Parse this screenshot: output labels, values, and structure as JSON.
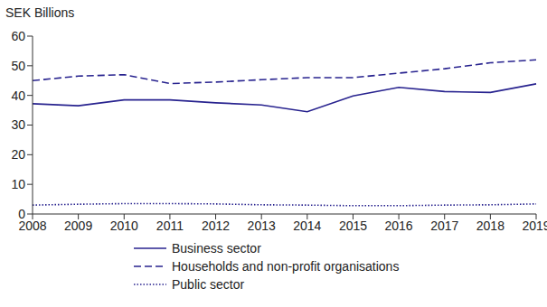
{
  "chart_data": {
    "type": "line",
    "ylabel": "SEK Billions",
    "categories": [
      "2008",
      "2009",
      "2010",
      "2011",
      "2012",
      "2013",
      "2014",
      "2015",
      "2016",
      "2017",
      "2018",
      "2019"
    ],
    "ylim": [
      0,
      60
    ],
    "yticks": [
      0,
      10,
      20,
      30,
      40,
      50,
      60
    ],
    "grid": false,
    "legend": "bottom",
    "series": [
      {
        "name": "Business sector",
        "color": "#28238f",
        "line_style": "solid",
        "values": [
          37.2,
          36.5,
          38.5,
          38.5,
          37.5,
          36.8,
          34.5,
          39.8,
          42.7,
          41.3,
          41.0,
          43.9
        ]
      },
      {
        "name": "Households and non-profit organisations",
        "color": "#28238f",
        "line_style": "dashed",
        "values": [
          45.0,
          46.5,
          47.0,
          44.0,
          44.5,
          45.3,
          46.0,
          46.0,
          47.5,
          49.0,
          51.0,
          52.0
        ]
      },
      {
        "name": "Public sector",
        "color": "#28238f",
        "line_style": "dotted",
        "values": [
          3.0,
          3.3,
          3.5,
          3.5,
          3.4,
          3.1,
          3.0,
          2.8,
          2.8,
          3.0,
          3.1,
          3.4
        ]
      }
    ]
  }
}
